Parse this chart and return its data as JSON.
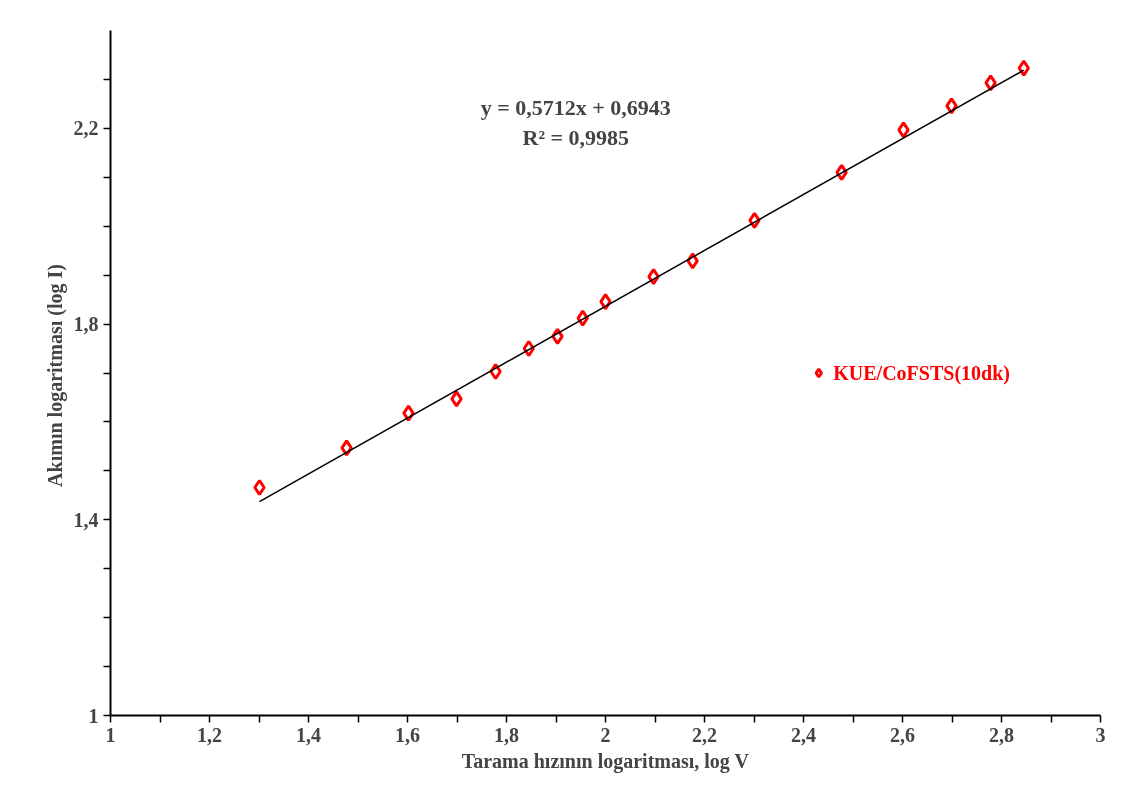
{
  "chart_data": {
    "type": "scatter",
    "xlabel": "Tarama hızının logaritması, log V",
    "ylabel": "Akımın logaritması  (log I)",
    "annotations": [
      "y = 0,5712x + 0,6943",
      "R² = 0,9985"
    ],
    "series": [
      {
        "name": "KUE/CoFSTS(10dk)",
        "color": "#ff0000",
        "marker": "diamond",
        "x": [
          1.301,
          1.477,
          1.602,
          1.699,
          1.778,
          1.845,
          1.903,
          1.954,
          2.0,
          2.097,
          2.176,
          2.301,
          2.477,
          2.602,
          2.699,
          2.778,
          2.845
        ],
        "values": [
          1.466,
          1.547,
          1.618,
          1.647,
          1.703,
          1.75,
          1.775,
          1.812,
          1.846,
          1.897,
          1.929,
          2.012,
          2.11,
          2.197,
          2.246,
          2.293,
          2.323
        ]
      },
      {
        "type": "line",
        "color": "#000000",
        "line_style": "solid",
        "x": [
          1.301,
          2.845
        ],
        "values": [
          1.437,
          2.319
        ]
      }
    ],
    "xlim": [
      1,
      3
    ],
    "ylim": [
      1,
      2.4
    ],
    "xticks": [
      1,
      {
        "value": 1.1,
        "label": null
      },
      {
        "value": 1.2,
        "label": "1,2"
      },
      {
        "value": 1.3,
        "label": null
      },
      {
        "value": 1.4,
        "label": "1,4"
      },
      {
        "value": 1.5,
        "label": null
      },
      {
        "value": 1.6,
        "label": "1,6"
      },
      {
        "value": 1.7,
        "label": null
      },
      {
        "value": 1.8,
        "label": "1,8"
      },
      {
        "value": 1.9,
        "label": null
      },
      2,
      {
        "value": 2.1,
        "label": null
      },
      {
        "value": 2.2,
        "label": "2,2"
      },
      {
        "value": 2.3,
        "label": null
      },
      {
        "value": 2.4,
        "label": "2,4"
      },
      {
        "value": 2.5,
        "label": null
      },
      {
        "value": 2.6,
        "label": "2,6"
      },
      {
        "value": 2.7,
        "label": null
      },
      {
        "value": 2.8,
        "label": "2,8"
      },
      {
        "value": 2.9,
        "label": null
      },
      3
    ],
    "yticks": [
      1,
      {
        "value": 1.1,
        "label": null
      },
      {
        "value": 1.2,
        "label": null
      },
      {
        "value": 1.3,
        "label": null
      },
      {
        "value": 1.4,
        "label": "1,4"
      },
      {
        "value": 1.5,
        "label": null
      },
      {
        "value": 1.6,
        "label": null
      },
      {
        "value": 1.7,
        "label": null
      },
      {
        "value": 1.8,
        "label": "1,8"
      },
      {
        "value": 1.9,
        "label": null
      },
      {
        "value": 2.0,
        "label": null
      },
      {
        "value": 2.1,
        "label": null
      },
      {
        "value": 2.2,
        "label": "2,2"
      },
      {
        "value": 2.3,
        "label": null
      }
    ],
    "grid": false,
    "legend": "right"
  }
}
